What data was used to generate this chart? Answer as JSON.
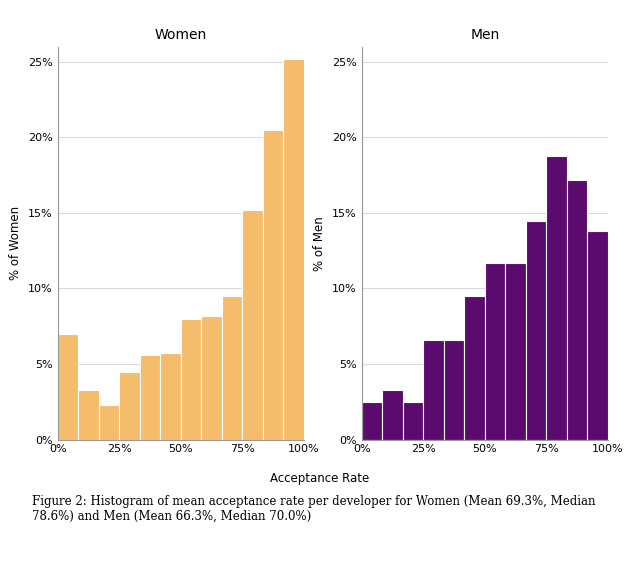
{
  "women_values": [
    7.0,
    3.3,
    2.3,
    4.5,
    5.6,
    5.7,
    8.0,
    8.2,
    9.5,
    15.2,
    20.5,
    25.2
  ],
  "men_values": [
    2.5,
    3.3,
    2.5,
    6.6,
    6.6,
    9.5,
    11.7,
    11.7,
    14.5,
    18.8,
    17.2,
    13.8
  ],
  "n_bins": 12,
  "women_color": "#f5bc6b",
  "men_color": "#5b0a6e",
  "bar_edge_color": "white",
  "women_title": "Women",
  "men_title": "Men",
  "women_ylabel": "% of Women",
  "men_ylabel": "% of Men",
  "xlabel": "Acceptance Rate",
  "ylim": [
    0,
    26
  ],
  "yticks": [
    0,
    5,
    10,
    15,
    20,
    25
  ],
  "xtick_positions": [
    0,
    25,
    50,
    75,
    100
  ],
  "xtick_labels": [
    "0%",
    "25%",
    "50%",
    "75%",
    "100%"
  ],
  "ytick_labels": [
    "0%",
    "5%",
    "10%",
    "15%",
    "20%",
    "25%"
  ],
  "caption": "Figure 2: Histogram of mean acceptance rate per developer for Women (Mean 69.3%, Median\n78.6%) and Men (Mean 66.3%, Median 70.0%)",
  "background_color": "#ffffff",
  "grid_color": "#d0d0d0",
  "title_fontsize": 10,
  "label_fontsize": 8.5,
  "tick_fontsize": 8,
  "caption_fontsize": 8.5
}
